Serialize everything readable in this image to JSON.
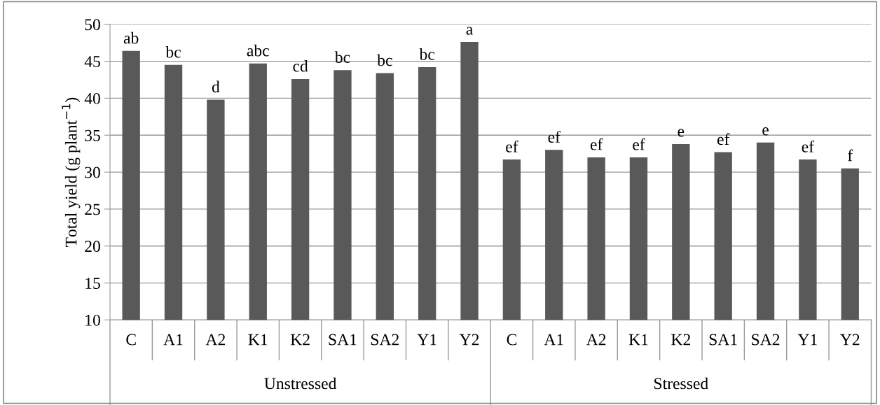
{
  "chart_data": {
    "type": "bar",
    "ylabel": "Total yield (g plant$^{−1}$)",
    "categories": [
      "C",
      "A1",
      "A2",
      "K1",
      "K2",
      "SA1",
      "SA2",
      "Y1",
      "Y2",
      "C",
      "A1",
      "A2",
      "K1",
      "K2",
      "SA1",
      "SA2",
      "Y1",
      "Y2"
    ],
    "values": [
      46.4,
      44.5,
      39.8,
      44.7,
      42.6,
      43.8,
      43.4,
      44.2,
      47.6,
      31.7,
      33.0,
      32.0,
      32.0,
      33.8,
      32.7,
      34.0,
      31.7,
      30.5
    ],
    "value_labels": [
      "ab",
      "bc",
      "d",
      "abc",
      "cd",
      "bc",
      "bc",
      "bc",
      "a",
      "ef",
      "ef",
      "ef",
      "ef",
      "e",
      "ef",
      "e",
      "ef",
      "f"
    ],
    "color": "#595959",
    "annotations": [
      "Unstressed",
      "Stressed"
    ],
    "ylim": [
      10,
      50
    ],
    "yticks": [
      10,
      15,
      20,
      25,
      30,
      35,
      40,
      45,
      50
    ],
    "grid": "y",
    "legend": false
  }
}
